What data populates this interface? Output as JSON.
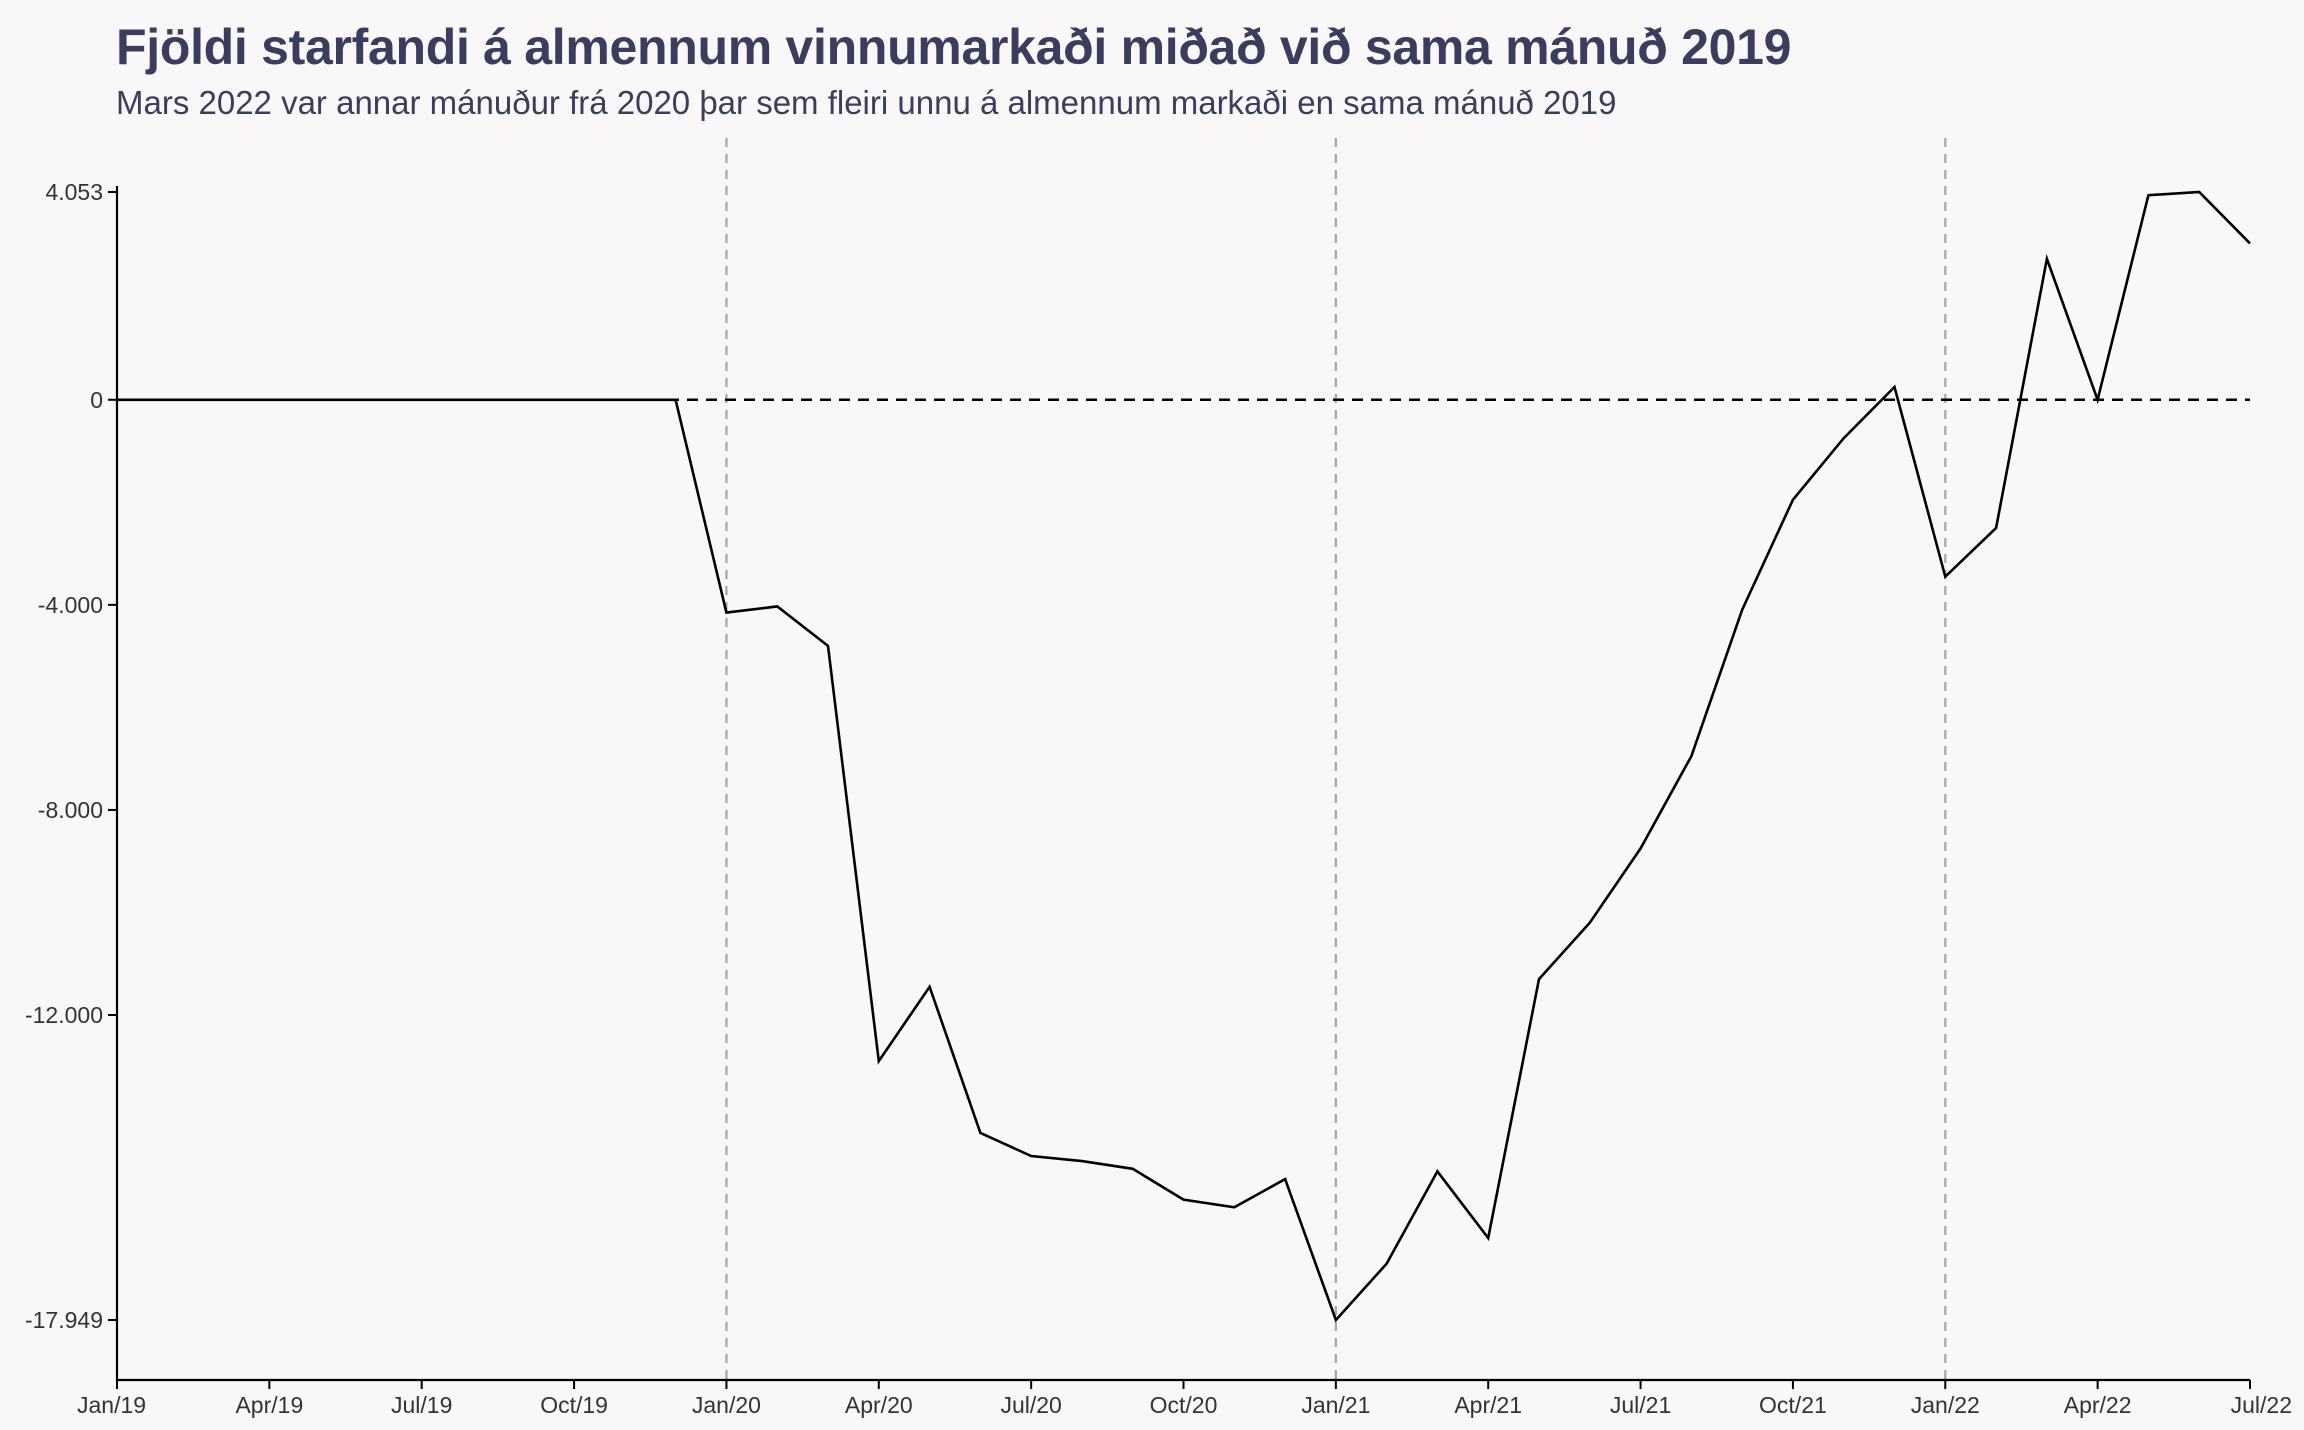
{
  "chart_data": {
    "type": "line",
    "title": "Fjöldi starfandi á almennum vinnumarkaði miðað við sama mánuð 2019",
    "subtitle": "Mars 2022 var annar mánuður frá 2020 þar sem fleiri unnu á almennum markaði en sama mánuð 2019",
    "xlabel": "",
    "ylabel": "",
    "x": [
      "2019-01",
      "2019-02",
      "2019-03",
      "2019-04",
      "2019-05",
      "2019-06",
      "2019-07",
      "2019-08",
      "2019-09",
      "2019-10",
      "2019-11",
      "2019-12",
      "2020-01",
      "2020-02",
      "2020-03",
      "2020-04",
      "2020-05",
      "2020-06",
      "2020-07",
      "2020-08",
      "2020-09",
      "2020-10",
      "2020-11",
      "2020-12",
      "2021-01",
      "2021-02",
      "2021-03",
      "2021-04",
      "2021-05",
      "2021-06",
      "2021-07",
      "2021-08",
      "2021-09",
      "2021-10",
      "2021-11",
      "2021-12",
      "2022-01",
      "2022-02",
      "2022-03",
      "2022-04",
      "2022-05",
      "2022-06",
      "2022-07"
    ],
    "values": [
      0,
      0,
      0,
      0,
      0,
      0,
      0,
      0,
      0,
      0,
      0,
      0,
      -4150,
      -4030,
      -4800,
      -12900,
      -11450,
      -14300,
      -14750,
      -14850,
      -15000,
      -15600,
      -15750,
      -15200,
      -17949,
      -16850,
      -15050,
      -16350,
      -11300,
      -10200,
      -8750,
      -6950,
      -4100,
      -1950,
      -750,
      250,
      -3450,
      -2500,
      2750,
      0,
      3990,
      4053,
      3050
    ],
    "yticks": [
      4053,
      0,
      -4000,
      -8000,
      -12000,
      -17949
    ],
    "ytick_labels": [
      "4.053",
      "0",
      "-4.000",
      "-8.000",
      "-12.000",
      "-17.949"
    ],
    "ylim": [
      -17949,
      4053
    ],
    "xticks": [
      "2019-01",
      "2019-04",
      "2019-07",
      "2019-10",
      "2020-01",
      "2020-04",
      "2020-07",
      "2020-10",
      "2021-01",
      "2021-04",
      "2021-07",
      "2021-10",
      "2022-01",
      "2022-04",
      "2022-07"
    ],
    "xtick_labels": [
      "Jan/19",
      "Apr/19",
      "Jul/19",
      "Oct/19",
      "Jan/20",
      "Apr/20",
      "Jul/20",
      "Oct/20",
      "Jan/21",
      "Apr/21",
      "Jul/21",
      "Oct/21",
      "Jan/22",
      "Apr/22",
      "Jul/22"
    ],
    "vlines": [
      "2020-01",
      "2021-01",
      "2022-01"
    ],
    "hline": 0,
    "grid": false,
    "legend": "none",
    "colors": {
      "line": "#000000",
      "vline": "#a6a6a6",
      "title": "#3b3d5e",
      "axis": "#000000"
    }
  }
}
